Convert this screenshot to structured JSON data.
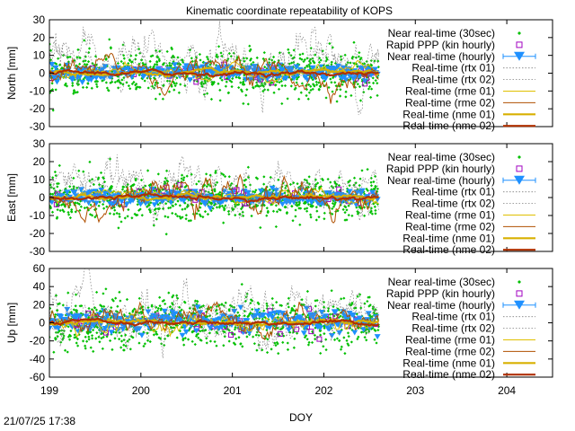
{
  "title": "Kinematic coordinate repeatability of KOPS",
  "footer_timestamp": "21/07/25 17:38",
  "xlabel": "DOY",
  "colors": {
    "near_realtime_30s": "#00c000",
    "rapid_ppp": "#a000c0",
    "near_realtime_hourly": "#1e90ff",
    "rtx": "#808080",
    "rme01": "#e0c000",
    "rme02": "#b05000",
    "nme01": "#d8b000",
    "nme02": "#b03000"
  },
  "chart_data": [
    {
      "type": "scatter",
      "ylabel": "North [mm]",
      "xlim": [
        199,
        204.5
      ],
      "ylim": [
        -30,
        30
      ],
      "xticks": [
        199,
        200,
        201,
        202,
        203,
        204
      ],
      "yticks": [
        30,
        20,
        10,
        0,
        -10,
        -20,
        -30
      ],
      "legend_position": "top-right",
      "series": [
        {
          "name": "Near real-time (30sec)",
          "style": "points",
          "color_key": "near_realtime_30s",
          "spread": 6
        },
        {
          "name": "Rapid PPP (kin hourly)",
          "style": "open-squares",
          "color_key": "rapid_ppp",
          "spread": 3
        },
        {
          "name": "Near real-time (hourly)",
          "style": "triangles-errorbars",
          "color_key": "near_realtime_hourly",
          "spread": 2
        },
        {
          "name": "Real-time (rtx 01)",
          "style": "dotted",
          "color_key": "rtx",
          "spread": 12
        },
        {
          "name": "Real-time (rtx 02)",
          "style": "dotted",
          "color_key": "rtx",
          "spread": 8
        },
        {
          "name": "Real-time (rme 01)",
          "style": "thin-line",
          "color_key": "rme01",
          "spread": 3
        },
        {
          "name": "Real-time (rme 02)",
          "style": "thin-line",
          "color_key": "rme02",
          "spread": 6
        },
        {
          "name": "Real-time (nme 01)",
          "style": "thick-line",
          "color_key": "nme01",
          "spread": 1
        },
        {
          "name": "Real-time (nme 02)",
          "style": "thick-line",
          "color_key": "nme02",
          "spread": 1
        }
      ]
    },
    {
      "type": "scatter",
      "ylabel": "East [mm]",
      "xlim": [
        199,
        204.5
      ],
      "ylim": [
        -30,
        30
      ],
      "xticks": [
        199,
        200,
        201,
        202,
        203,
        204
      ],
      "yticks": [
        30,
        20,
        10,
        0,
        -10,
        -20,
        -30
      ],
      "legend_position": "top-right",
      "series": [
        {
          "name": "Near real-time (30sec)",
          "style": "points",
          "color_key": "near_realtime_30s",
          "spread": 6
        },
        {
          "name": "Rapid PPP (kin hourly)",
          "style": "open-squares",
          "color_key": "rapid_ppp",
          "spread": 3
        },
        {
          "name": "Near real-time (hourly)",
          "style": "triangles-errorbars",
          "color_key": "near_realtime_hourly",
          "spread": 2
        },
        {
          "name": "Real-time (rtx 01)",
          "style": "dotted",
          "color_key": "rtx",
          "spread": 10
        },
        {
          "name": "Real-time (rtx 02)",
          "style": "dotted",
          "color_key": "rtx",
          "spread": 6
        },
        {
          "name": "Real-time (rme 01)",
          "style": "thin-line",
          "color_key": "rme01",
          "spread": 3
        },
        {
          "name": "Real-time (rme 02)",
          "style": "thin-line",
          "color_key": "rme02",
          "spread": 7
        },
        {
          "name": "Real-time (nme 01)",
          "style": "thick-line",
          "color_key": "nme01",
          "spread": 1
        },
        {
          "name": "Real-time (nme 02)",
          "style": "thick-line",
          "color_key": "nme02",
          "spread": 1
        }
      ]
    },
    {
      "type": "scatter",
      "ylabel": "Up [mm]",
      "xlim": [
        199,
        204.5
      ],
      "ylim": [
        -60,
        60
      ],
      "xticks": [
        199,
        200,
        201,
        202,
        203,
        204
      ],
      "yticks": [
        60,
        40,
        20,
        0,
        -20,
        -40,
        -60
      ],
      "legend_position": "top-right",
      "series": [
        {
          "name": "Near real-time (30sec)",
          "style": "points",
          "color_key": "near_realtime_30s",
          "spread": 14
        },
        {
          "name": "Rapid PPP (kin hourly)",
          "style": "open-squares",
          "color_key": "rapid_ppp",
          "spread": 10
        },
        {
          "name": "Near real-time (hourly)",
          "style": "triangles-errorbars",
          "color_key": "near_realtime_hourly",
          "spread": 6
        },
        {
          "name": "Real-time (rtx 01)",
          "style": "dotted",
          "color_key": "rtx",
          "spread": 25
        },
        {
          "name": "Real-time (rtx 02)",
          "style": "dotted",
          "color_key": "rtx",
          "spread": 15
        },
        {
          "name": "Real-time (rme 01)",
          "style": "thin-line",
          "color_key": "rme01",
          "spread": 8
        },
        {
          "name": "Real-time (rme 02)",
          "style": "thin-line",
          "color_key": "rme02",
          "spread": 12
        },
        {
          "name": "Real-time (nme 01)",
          "style": "thick-line",
          "color_key": "nme01",
          "spread": 2
        },
        {
          "name": "Real-time (nme 02)",
          "style": "thick-line",
          "color_key": "nme02",
          "spread": 2
        }
      ]
    }
  ]
}
